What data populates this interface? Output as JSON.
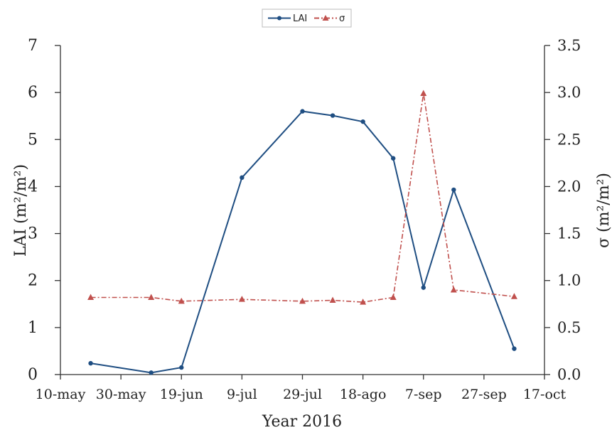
{
  "chart_data": {
    "type": "line",
    "xlabel": "Year 2016",
    "ylabel": "LAI (m²/m²)",
    "y2label": "σ (m²/m²)",
    "x_ticks": [
      "10-may",
      "30-may",
      "19-jun",
      "9-jul",
      "29-jul",
      "18-ago",
      "7-sep",
      "27-sep",
      "17-oct"
    ],
    "y_ticks": [
      "0",
      "1",
      "2",
      "3",
      "4",
      "5",
      "6",
      "7"
    ],
    "y2_ticks": [
      "0.0",
      "0.5",
      "1.0",
      "1.5",
      "2.0",
      "2.5",
      "3.0",
      "3.5"
    ],
    "ylim": [
      0,
      7
    ],
    "y2lim": [
      0,
      3.5
    ],
    "xlim_days": [
      0,
      160
    ],
    "legend_position": "top-center",
    "grid": false,
    "series": [
      {
        "name": "LAI",
        "axis": "left",
        "color": "#1f4e82",
        "line_style": "solid",
        "marker": "circle",
        "x": [
          "2016-05-20",
          "2016-06-09",
          "2016-06-19",
          "2016-07-09",
          "2016-07-29",
          "2016-08-08",
          "2016-08-18",
          "2016-08-28",
          "2016-09-07",
          "2016-09-17",
          "2016-10-07"
        ],
        "values": [
          0.24,
          0.04,
          0.15,
          4.19,
          5.6,
          5.51,
          5.38,
          4.6,
          1.85,
          3.93,
          0.55
        ]
      },
      {
        "name": "σ",
        "axis": "right",
        "color": "#c0504d",
        "line_style": "dash-dot",
        "marker": "triangle",
        "x": [
          "2016-05-20",
          "2016-06-09",
          "2016-06-19",
          "2016-07-09",
          "2016-07-29",
          "2016-08-08",
          "2016-08-18",
          "2016-08-28",
          "2016-09-07",
          "2016-09-17",
          "2016-10-07"
        ],
        "values": [
          0.82,
          0.82,
          0.78,
          0.8,
          0.78,
          0.79,
          0.77,
          0.82,
          2.99,
          0.9,
          0.83
        ]
      }
    ]
  }
}
